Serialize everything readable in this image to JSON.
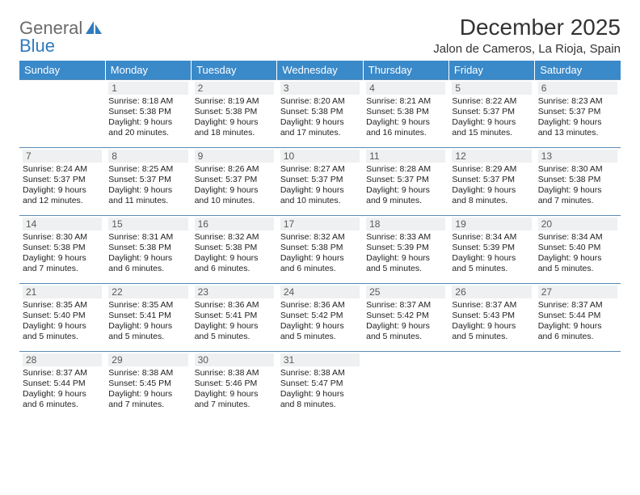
{
  "brand": {
    "part1": "General",
    "part2": "Blue",
    "text_color_1": "#6b6b6b",
    "text_color_2": "#2f7bbf",
    "icon_color": "#2f7bbf"
  },
  "title": "December 2025",
  "location": "Jalon de Cameros, La Rioja, Spain",
  "header": {
    "bg_color": "#3a89c9",
    "text_color": "#ffffff",
    "days": [
      "Sunday",
      "Monday",
      "Tuesday",
      "Wednesday",
      "Thursday",
      "Friday",
      "Saturday"
    ]
  },
  "daynum_style": {
    "bg": "#eef0f1",
    "color": "#5a5a5a"
  },
  "row_border_color": "#5b8bb5",
  "body_font_size_pt": 10.5,
  "weeks": [
    [
      {
        "n": "",
        "lines": []
      },
      {
        "n": "1",
        "lines": [
          "Sunrise: 8:18 AM",
          "Sunset: 5:38 PM",
          "Daylight: 9 hours and 20 minutes."
        ]
      },
      {
        "n": "2",
        "lines": [
          "Sunrise: 8:19 AM",
          "Sunset: 5:38 PM",
          "Daylight: 9 hours and 18 minutes."
        ]
      },
      {
        "n": "3",
        "lines": [
          "Sunrise: 8:20 AM",
          "Sunset: 5:38 PM",
          "Daylight: 9 hours and 17 minutes."
        ]
      },
      {
        "n": "4",
        "lines": [
          "Sunrise: 8:21 AM",
          "Sunset: 5:38 PM",
          "Daylight: 9 hours and 16 minutes."
        ]
      },
      {
        "n": "5",
        "lines": [
          "Sunrise: 8:22 AM",
          "Sunset: 5:37 PM",
          "Daylight: 9 hours and 15 minutes."
        ]
      },
      {
        "n": "6",
        "lines": [
          "Sunrise: 8:23 AM",
          "Sunset: 5:37 PM",
          "Daylight: 9 hours and 13 minutes."
        ]
      }
    ],
    [
      {
        "n": "7",
        "lines": [
          "Sunrise: 8:24 AM",
          "Sunset: 5:37 PM",
          "Daylight: 9 hours and 12 minutes."
        ]
      },
      {
        "n": "8",
        "lines": [
          "Sunrise: 8:25 AM",
          "Sunset: 5:37 PM",
          "Daylight: 9 hours and 11 minutes."
        ]
      },
      {
        "n": "9",
        "lines": [
          "Sunrise: 8:26 AM",
          "Sunset: 5:37 PM",
          "Daylight: 9 hours and 10 minutes."
        ]
      },
      {
        "n": "10",
        "lines": [
          "Sunrise: 8:27 AM",
          "Sunset: 5:37 PM",
          "Daylight: 9 hours and 10 minutes."
        ]
      },
      {
        "n": "11",
        "lines": [
          "Sunrise: 8:28 AM",
          "Sunset: 5:37 PM",
          "Daylight: 9 hours and 9 minutes."
        ]
      },
      {
        "n": "12",
        "lines": [
          "Sunrise: 8:29 AM",
          "Sunset: 5:37 PM",
          "Daylight: 9 hours and 8 minutes."
        ]
      },
      {
        "n": "13",
        "lines": [
          "Sunrise: 8:30 AM",
          "Sunset: 5:38 PM",
          "Daylight: 9 hours and 7 minutes."
        ]
      }
    ],
    [
      {
        "n": "14",
        "lines": [
          "Sunrise: 8:30 AM",
          "Sunset: 5:38 PM",
          "Daylight: 9 hours and 7 minutes."
        ]
      },
      {
        "n": "15",
        "lines": [
          "Sunrise: 8:31 AM",
          "Sunset: 5:38 PM",
          "Daylight: 9 hours and 6 minutes."
        ]
      },
      {
        "n": "16",
        "lines": [
          "Sunrise: 8:32 AM",
          "Sunset: 5:38 PM",
          "Daylight: 9 hours and 6 minutes."
        ]
      },
      {
        "n": "17",
        "lines": [
          "Sunrise: 8:32 AM",
          "Sunset: 5:38 PM",
          "Daylight: 9 hours and 6 minutes."
        ]
      },
      {
        "n": "18",
        "lines": [
          "Sunrise: 8:33 AM",
          "Sunset: 5:39 PM",
          "Daylight: 9 hours and 5 minutes."
        ]
      },
      {
        "n": "19",
        "lines": [
          "Sunrise: 8:34 AM",
          "Sunset: 5:39 PM",
          "Daylight: 9 hours and 5 minutes."
        ]
      },
      {
        "n": "20",
        "lines": [
          "Sunrise: 8:34 AM",
          "Sunset: 5:40 PM",
          "Daylight: 9 hours and 5 minutes."
        ]
      }
    ],
    [
      {
        "n": "21",
        "lines": [
          "Sunrise: 8:35 AM",
          "Sunset: 5:40 PM",
          "Daylight: 9 hours and 5 minutes."
        ]
      },
      {
        "n": "22",
        "lines": [
          "Sunrise: 8:35 AM",
          "Sunset: 5:41 PM",
          "Daylight: 9 hours and 5 minutes."
        ]
      },
      {
        "n": "23",
        "lines": [
          "Sunrise: 8:36 AM",
          "Sunset: 5:41 PM",
          "Daylight: 9 hours and 5 minutes."
        ]
      },
      {
        "n": "24",
        "lines": [
          "Sunrise: 8:36 AM",
          "Sunset: 5:42 PM",
          "Daylight: 9 hours and 5 minutes."
        ]
      },
      {
        "n": "25",
        "lines": [
          "Sunrise: 8:37 AM",
          "Sunset: 5:42 PM",
          "Daylight: 9 hours and 5 minutes."
        ]
      },
      {
        "n": "26",
        "lines": [
          "Sunrise: 8:37 AM",
          "Sunset: 5:43 PM",
          "Daylight: 9 hours and 5 minutes."
        ]
      },
      {
        "n": "27",
        "lines": [
          "Sunrise: 8:37 AM",
          "Sunset: 5:44 PM",
          "Daylight: 9 hours and 6 minutes."
        ]
      }
    ],
    [
      {
        "n": "28",
        "lines": [
          "Sunrise: 8:37 AM",
          "Sunset: 5:44 PM",
          "Daylight: 9 hours and 6 minutes."
        ]
      },
      {
        "n": "29",
        "lines": [
          "Sunrise: 8:38 AM",
          "Sunset: 5:45 PM",
          "Daylight: 9 hours and 7 minutes."
        ]
      },
      {
        "n": "30",
        "lines": [
          "Sunrise: 8:38 AM",
          "Sunset: 5:46 PM",
          "Daylight: 9 hours and 7 minutes."
        ]
      },
      {
        "n": "31",
        "lines": [
          "Sunrise: 8:38 AM",
          "Sunset: 5:47 PM",
          "Daylight: 9 hours and 8 minutes."
        ]
      },
      {
        "n": "",
        "lines": []
      },
      {
        "n": "",
        "lines": []
      },
      {
        "n": "",
        "lines": []
      }
    ]
  ]
}
